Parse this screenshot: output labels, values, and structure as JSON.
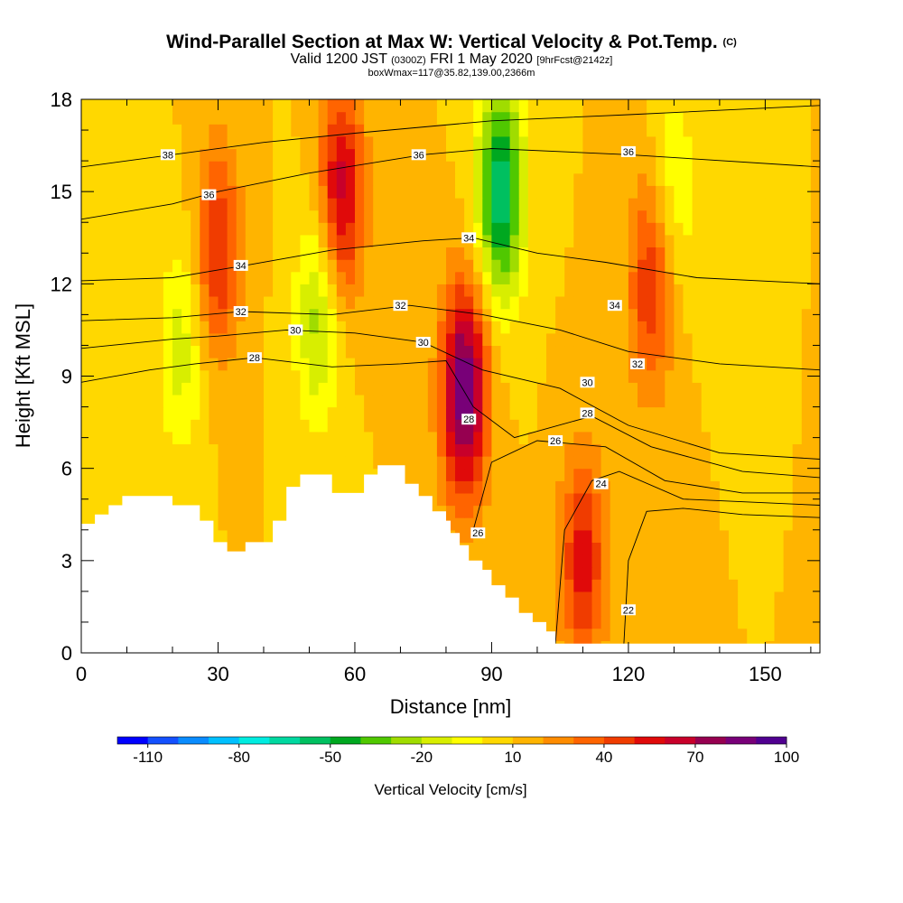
{
  "title": {
    "main": "Wind-Parallel Section at Max W: Vertical Velocity & Pot.Temp.",
    "copyright": "(C)",
    "valid_prefix": "Valid 1200 JST",
    "utc": "(0300Z)",
    "valid_date": "FRI 1 May 2020",
    "forecast": "[9hrFcst@2142z]",
    "box_info": "boxWmax=117@35.82,139.00,2366m"
  },
  "chart_data": {
    "type": "heatmap",
    "xlabel": "Distance [nm]",
    "ylabel": "Height [Kft MSL]",
    "xlim": [
      0,
      162
    ],
    "ylim": [
      0,
      18
    ],
    "x_ticks": [
      0,
      30,
      60,
      90,
      120,
      150
    ],
    "y_ticks": [
      0,
      3,
      6,
      9,
      12,
      15,
      18
    ],
    "terrain_profile": [
      [
        0,
        4.2
      ],
      [
        3,
        4.2
      ],
      [
        3,
        4.5
      ],
      [
        6,
        4.5
      ],
      [
        6,
        4.8
      ],
      [
        9,
        4.8
      ],
      [
        9,
        5.1
      ],
      [
        20,
        5.1
      ],
      [
        20,
        4.8
      ],
      [
        26,
        4.8
      ],
      [
        26,
        4.3
      ],
      [
        29,
        4.3
      ],
      [
        29,
        3.6
      ],
      [
        32,
        3.6
      ],
      [
        32,
        3.3
      ],
      [
        36,
        3.3
      ],
      [
        36,
        3.6
      ],
      [
        42,
        3.6
      ],
      [
        42,
        4.3
      ],
      [
        45,
        4.3
      ],
      [
        45,
        5.4
      ],
      [
        48,
        5.4
      ],
      [
        48,
        5.8
      ],
      [
        55,
        5.8
      ],
      [
        55,
        5.2
      ],
      [
        62,
        5.2
      ],
      [
        62,
        5.8
      ],
      [
        65,
        5.8
      ],
      [
        65,
        6.1
      ],
      [
        71,
        6.1
      ],
      [
        71,
        5.5
      ],
      [
        74,
        5.5
      ],
      [
        74,
        5.1
      ],
      [
        77,
        5.1
      ],
      [
        77,
        4.6
      ],
      [
        80,
        4.6
      ],
      [
        80,
        4.3
      ],
      [
        81,
        4.3
      ],
      [
        81,
        3.9
      ],
      [
        83,
        3.9
      ],
      [
        83,
        3.5
      ],
      [
        85,
        3.5
      ],
      [
        85,
        3.0
      ],
      [
        88,
        3.0
      ],
      [
        88,
        2.7
      ],
      [
        90,
        2.7
      ],
      [
        90,
        2.2
      ],
      [
        93,
        2.2
      ],
      [
        93,
        1.8
      ],
      [
        96,
        1.8
      ],
      [
        96,
        1.3
      ],
      [
        99,
        1.3
      ],
      [
        99,
        1.0
      ],
      [
        102,
        1.0
      ],
      [
        102,
        0.7
      ],
      [
        104,
        0.7
      ],
      [
        104,
        0.3
      ],
      [
        162,
        0.3
      ]
    ],
    "w_field": {
      "units": "cm/s",
      "features": [
        {
          "kind": "updraft",
          "x": 84,
          "y": 8.5,
          "peak": 80
        },
        {
          "kind": "downdraft",
          "x": 92,
          "y": 15,
          "peak": -70
        },
        {
          "kind": "downdraft",
          "x": 52,
          "y": 11,
          "peak": -35
        },
        {
          "kind": "updraft",
          "x": 57,
          "y": 15,
          "peak": 55
        },
        {
          "kind": "updraft",
          "x": 30,
          "y": 13,
          "peak": 40
        },
        {
          "kind": "updraft",
          "x": 110,
          "y": 3,
          "peak": 45
        },
        {
          "kind": "updraft",
          "x": 125,
          "y": 12,
          "peak": 40
        },
        {
          "kind": "downdraft",
          "x": 22,
          "y": 10,
          "peak": -25
        },
        {
          "kind": "downdraft",
          "x": 130,
          "y": 15,
          "peak": -20
        }
      ]
    },
    "theta_contours": [
      {
        "label": "38",
        "points": [
          [
            0,
            15.8
          ],
          [
            20,
            16.2
          ],
          [
            40,
            16.6
          ],
          [
            60,
            16.9
          ],
          [
            90,
            17.3
          ],
          [
            120,
            17.5
          ],
          [
            162,
            17.8
          ]
        ]
      },
      {
        "label": "36",
        "points": [
          [
            0,
            14.1
          ],
          [
            20,
            14.6
          ],
          [
            30,
            15.0
          ],
          [
            50,
            15.6
          ],
          [
            75,
            16.2
          ],
          [
            90,
            16.4
          ],
          [
            120,
            16.2
          ],
          [
            162,
            15.8
          ]
        ]
      },
      {
        "label": "34",
        "points": [
          [
            0,
            12.1
          ],
          [
            20,
            12.2
          ],
          [
            36,
            12.6
          ],
          [
            55,
            13.1
          ],
          [
            75,
            13.4
          ],
          [
            86,
            13.5
          ],
          [
            100,
            13.0
          ],
          [
            115,
            12.7
          ],
          [
            135,
            12.2
          ],
          [
            162,
            12.0
          ]
        ]
      },
      {
        "label": "32",
        "points": [
          [
            0,
            10.8
          ],
          [
            20,
            10.9
          ],
          [
            35,
            11.1
          ],
          [
            55,
            11.0
          ],
          [
            72,
            11.3
          ],
          [
            88,
            11.0
          ],
          [
            105,
            10.5
          ],
          [
            120,
            9.8
          ],
          [
            140,
            9.4
          ],
          [
            162,
            9.2
          ]
        ]
      },
      {
        "label": "30",
        "points": [
          [
            0,
            9.9
          ],
          [
            20,
            10.2
          ],
          [
            30,
            10.3
          ],
          [
            45,
            10.5
          ],
          [
            60,
            10.4
          ],
          [
            75,
            10.1
          ],
          [
            88,
            9.2
          ],
          [
            105,
            8.6
          ],
          [
            120,
            7.4
          ],
          [
            140,
            6.5
          ],
          [
            162,
            6.3
          ]
        ]
      },
      {
        "label": "28",
        "points": [
          [
            0,
            8.8
          ],
          [
            15,
            9.2
          ],
          [
            25,
            9.4
          ],
          [
            38,
            9.6
          ],
          [
            55,
            9.3
          ],
          [
            70,
            9.4
          ],
          [
            80,
            9.5
          ],
          [
            86,
            8.0
          ],
          [
            95,
            7.0
          ],
          [
            112,
            7.7
          ],
          [
            125,
            6.7
          ],
          [
            145,
            5.9
          ],
          [
            162,
            5.7
          ]
        ]
      },
      {
        "label": "26",
        "points": [
          [
            86,
            4.0
          ],
          [
            90,
            6.2
          ],
          [
            100,
            6.9
          ],
          [
            115,
            6.7
          ],
          [
            128,
            5.6
          ],
          [
            145,
            5.2
          ],
          [
            162,
            5.2
          ]
        ]
      },
      {
        "label": "24",
        "points": [
          [
            104,
            0.3
          ],
          [
            106,
            4.0
          ],
          [
            112,
            5.6
          ],
          [
            118,
            5.9
          ],
          [
            132,
            5.0
          ],
          [
            162,
            4.8
          ]
        ]
      },
      {
        "label": "22",
        "points": [
          [
            119,
            0.3
          ],
          [
            120,
            3.0
          ],
          [
            124,
            4.6
          ],
          [
            132,
            4.7
          ],
          [
            145,
            4.5
          ],
          [
            162,
            4.4
          ]
        ]
      }
    ],
    "contour_labels": [
      {
        "text": "38",
        "x": 19,
        "y": 16.2
      },
      {
        "text": "36",
        "x": 28,
        "y": 14.9
      },
      {
        "text": "34",
        "x": 35,
        "y": 12.6
      },
      {
        "text": "32",
        "x": 35,
        "y": 11.1
      },
      {
        "text": "30",
        "x": 47,
        "y": 10.5
      },
      {
        "text": "28",
        "x": 38,
        "y": 9.6
      },
      {
        "text": "36",
        "x": 74,
        "y": 16.2
      },
      {
        "text": "34",
        "x": 85,
        "y": 13.5
      },
      {
        "text": "32",
        "x": 70,
        "y": 11.3
      },
      {
        "text": "30",
        "x": 75,
        "y": 10.1
      },
      {
        "text": "28",
        "x": 85,
        "y": 7.6
      },
      {
        "text": "26",
        "x": 87,
        "y": 3.9
      },
      {
        "text": "36",
        "x": 120,
        "y": 16.3
      },
      {
        "text": "34",
        "x": 117,
        "y": 11.3
      },
      {
        "text": "32",
        "x": 122,
        "y": 9.4
      },
      {
        "text": "30",
        "x": 111,
        "y": 8.8
      },
      {
        "text": "28",
        "x": 111,
        "y": 7.8
      },
      {
        "text": "26",
        "x": 104,
        "y": 6.9
      },
      {
        "text": "24",
        "x": 114,
        "y": 5.5
      },
      {
        "text": "22",
        "x": 120,
        "y": 1.4
      }
    ]
  },
  "colorbar": {
    "label": "Vertical Velocity [cm/s]",
    "tick_labels": [
      "-110",
      "-80",
      "-50",
      "-20",
      "10",
      "40",
      "70",
      "100"
    ],
    "colors": [
      "#0000ff",
      "#1450ff",
      "#0a8cff",
      "#00c0ff",
      "#00ece0",
      "#00d8a0",
      "#00c060",
      "#00a820",
      "#50c800",
      "#a0dc00",
      "#d8ee00",
      "#ffff00",
      "#ffd800",
      "#ffb400",
      "#ff8c00",
      "#ff6400",
      "#f03c00",
      "#e00a0a",
      "#c8002a",
      "#960050",
      "#780078",
      "#500090"
    ]
  }
}
